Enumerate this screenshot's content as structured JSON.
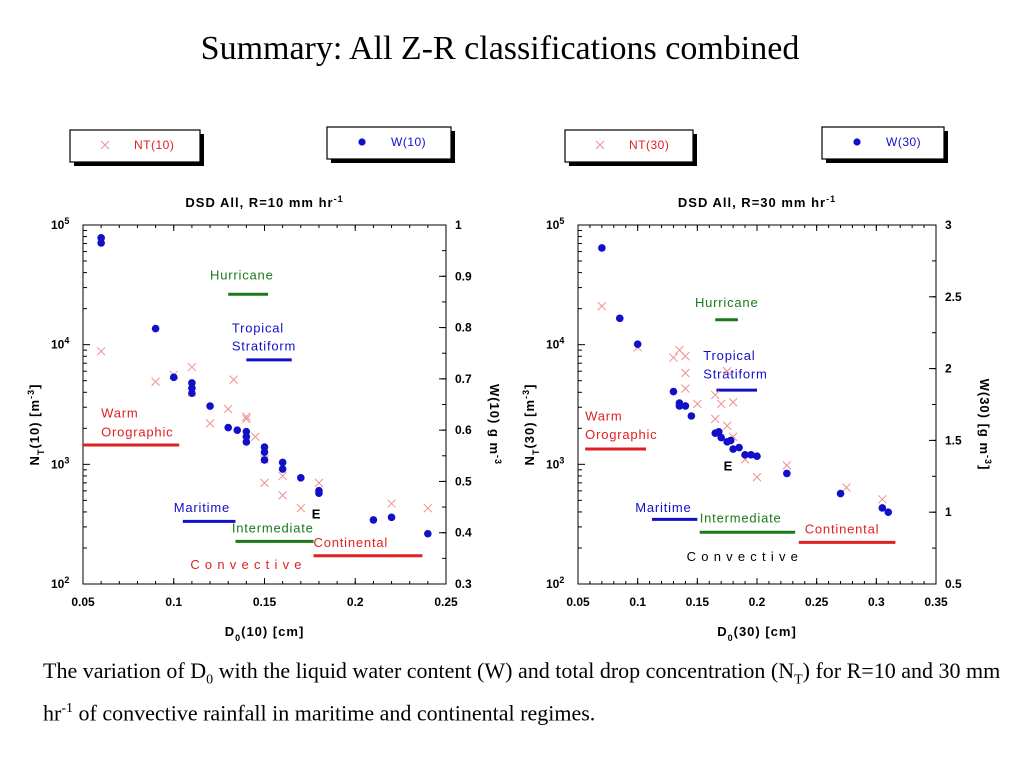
{
  "title": "Summary:  All Z-R classifications combined",
  "caption": {
    "part1": "The variation of D",
    "sub1": "0",
    "part2": " with the liquid water content (W) and total drop concentration (N",
    "sub2": "T",
    "part3": ") for R=10 and 30 mm hr",
    "sup1": "-1",
    "part4": " of convective rainfall in maritime and continental regimes."
  },
  "chart_data": [
    {
      "type": "scatter",
      "title": "DSD  All, R=10 mm hr",
      "title_sup": "-1",
      "xlabel": "D",
      "xlabel_sub": "0",
      "xlabel_rest": "(10) [cm]",
      "ylabel_left": "N",
      "ylabel_left_sub": "T",
      "ylabel_left_rest": "(10)  [m",
      "ylabel_left_sup": "-3",
      "ylabel_left_end": "]",
      "ylabel_right": "W(10) g m",
      "ylabel_right_sup": "-3",
      "xlim": [
        0.05,
        0.25
      ],
      "xticks": [
        0.05,
        0.1,
        0.15,
        0.2,
        0.25
      ],
      "xtick_labels": [
        "0.05",
        "0.1",
        "0.15",
        "0.2",
        "0.25"
      ],
      "ylim_left": [
        100,
        100000
      ],
      "yscale_left": "log",
      "yticks_left": [
        {
          "value": 100,
          "base": "10",
          "exp": "2"
        },
        {
          "value": 1000,
          "base": "10",
          "exp": "3"
        },
        {
          "value": 10000,
          "base": "10",
          "exp": "4"
        },
        {
          "value": 100000,
          "base": "10",
          "exp": "5"
        }
      ],
      "ylim_right": [
        0.3,
        1.0
      ],
      "yticks_right": [
        0.3,
        0.4,
        0.5,
        0.6,
        0.7,
        0.8,
        0.9,
        1.0
      ],
      "ytick_labels_right": [
        "0.3",
        "0.4",
        "0.5",
        "0.6",
        "0.7",
        "0.8",
        "0.9",
        "1"
      ],
      "legends": [
        {
          "label": "NT(10)",
          "marker": "x",
          "color": "#e02020"
        },
        {
          "label": "W(10)",
          "marker": "dot",
          "color": "#1010c8"
        }
      ],
      "series": [
        {
          "name": "NT(10)",
          "axis": "left",
          "marker": "x",
          "color": "#f09090",
          "points": [
            [
              0.06,
              8800
            ],
            [
              0.09,
              4900
            ],
            [
              0.1,
              5600
            ],
            [
              0.11,
              6500
            ],
            [
              0.11,
              4000
            ],
            [
              0.12,
              2200
            ],
            [
              0.13,
              2900
            ],
            [
              0.133,
              5100
            ],
            [
              0.14,
              2400
            ],
            [
              0.14,
              2500
            ],
            [
              0.145,
              1700
            ],
            [
              0.15,
              1100
            ],
            [
              0.15,
              700
            ],
            [
              0.16,
              800
            ],
            [
              0.16,
              550
            ],
            [
              0.17,
              430
            ],
            [
              0.18,
              700
            ],
            [
              0.22,
              470
            ],
            [
              0.24,
              430
            ]
          ]
        },
        {
          "name": "W(10)",
          "axis": "right",
          "marker": "dot",
          "color": "#1010c8",
          "points": [
            [
              0.06,
              0.975
            ],
            [
              0.06,
              0.965
            ],
            [
              0.09,
              0.798
            ],
            [
              0.1,
              0.703
            ],
            [
              0.11,
              0.692
            ],
            [
              0.11,
              0.682
            ],
            [
              0.11,
              0.672
            ],
            [
              0.12,
              0.647
            ],
            [
              0.13,
              0.605
            ],
            [
              0.135,
              0.6
            ],
            [
              0.14,
              0.597
            ],
            [
              0.14,
              0.587
            ],
            [
              0.14,
              0.577
            ],
            [
              0.15,
              0.567
            ],
            [
              0.15,
              0.557
            ],
            [
              0.15,
              0.542
            ],
            [
              0.16,
              0.537
            ],
            [
              0.16,
              0.524
            ],
            [
              0.17,
              0.507
            ],
            [
              0.18,
              0.482
            ],
            [
              0.18,
              0.477
            ],
            [
              0.21,
              0.425
            ],
            [
              0.22,
              0.43
            ],
            [
              0.24,
              0.398
            ]
          ]
        }
      ],
      "annotations": [
        {
          "text": "Hurricane",
          "color": "#1a7a1a",
          "lx": 0.12,
          "ly": 0.894,
          "x1": 0.13,
          "x2": 0.152,
          "y": 0.865
        },
        {
          "text": "Tropical",
          "color": "#1010c8",
          "lx": 0.132,
          "ly": 0.79,
          "x1": null,
          "x2": null,
          "y": null
        },
        {
          "text": "Stratiform",
          "color": "#1010c8",
          "lx": 0.132,
          "ly": 0.755,
          "x1": 0.14,
          "x2": 0.165,
          "y": 0.737
        },
        {
          "text": "Warm",
          "color": "#e02020",
          "lx": 0.06,
          "ly": 0.625,
          "x1": null,
          "x2": null,
          "y": null
        },
        {
          "text": "Orographic",
          "color": "#e02020",
          "lx": 0.06,
          "ly": 0.588,
          "x1": 0.05,
          "x2": 0.103,
          "y": 0.571
        },
        {
          "text": "Maritime",
          "color": "#1010c8",
          "lx": 0.1,
          "ly": 0.44,
          "x1": 0.105,
          "x2": 0.134,
          "y": 0.422
        },
        {
          "text": "Intermediate",
          "color": "#1a7a1a",
          "lx": 0.132,
          "ly": 0.4,
          "x1": 0.134,
          "x2": 0.177,
          "y": 0.383
        },
        {
          "text": "Continental",
          "color": "#e02020",
          "lx": 0.177,
          "ly": 0.372,
          "x1": 0.177,
          "x2": 0.237,
          "y": 0.355
        },
        {
          "text": "C o n v e c t i v e",
          "color": "#e02020",
          "lx": 0.14,
          "ly": 0.329,
          "x1": null,
          "x2": null,
          "y": null,
          "anchor": "middle"
        },
        {
          "text": "E",
          "color": "#000000",
          "lx": 0.176,
          "ly": 0.428,
          "x1": null,
          "x2": null,
          "y": null,
          "bold": true
        }
      ]
    },
    {
      "type": "scatter",
      "title": "DSD  All, R=30 mm hr",
      "title_sup": "-1",
      "xlabel": "D",
      "xlabel_sub": "0",
      "xlabel_rest": "(30) [cm]",
      "ylabel_left": "N",
      "ylabel_left_sub": "T",
      "ylabel_left_rest": "(30) [m",
      "ylabel_left_sup": "-3",
      "ylabel_left_end": "]",
      "ylabel_right": "W(30) [g m",
      "ylabel_right_sup": "-3",
      "ylabel_right_end": "]",
      "xlim": [
        0.05,
        0.35
      ],
      "xticks": [
        0.05,
        0.1,
        0.15,
        0.2,
        0.25,
        0.3,
        0.35
      ],
      "xtick_labels": [
        "0.05",
        "0.1",
        "0.15",
        "0.2",
        "0.25",
        "0.3",
        "0.35"
      ],
      "ylim_left": [
        100,
        100000
      ],
      "yscale_left": "log",
      "yticks_left": [
        {
          "value": 100,
          "base": "10",
          "exp": "2"
        },
        {
          "value": 1000,
          "base": "10",
          "exp": "3"
        },
        {
          "value": 10000,
          "base": "10",
          "exp": "4"
        },
        {
          "value": 100000,
          "base": "10",
          "exp": "5"
        }
      ],
      "ylim_right": [
        0.5,
        3.0
      ],
      "yticks_right": [
        0.5,
        1.0,
        1.5,
        2.0,
        2.5,
        3.0
      ],
      "ytick_labels_right": [
        "0.5",
        "1",
        "1.5",
        "2",
        "2.5",
        "3"
      ],
      "legends": [
        {
          "label": "NT(30)",
          "marker": "x",
          "color": "#e02020"
        },
        {
          "label": "W(30)",
          "marker": "dot",
          "color": "#1010c8"
        }
      ],
      "series": [
        {
          "name": "NT(30)",
          "axis": "left",
          "marker": "x",
          "color": "#f09090",
          "points": [
            [
              0.07,
              21000
            ],
            [
              0.1,
              9500
            ],
            [
              0.13,
              7800
            ],
            [
              0.135,
              9000
            ],
            [
              0.14,
              8000
            ],
            [
              0.14,
              5800
            ],
            [
              0.14,
              4300
            ],
            [
              0.15,
              3200
            ],
            [
              0.165,
              3800
            ],
            [
              0.17,
              3200
            ],
            [
              0.175,
              6000
            ],
            [
              0.18,
              3300
            ],
            [
              0.165,
              2400
            ],
            [
              0.175,
              2100
            ],
            [
              0.18,
              1700
            ],
            [
              0.19,
              1100
            ],
            [
              0.2,
              780
            ],
            [
              0.225,
              980
            ],
            [
              0.275,
              640
            ],
            [
              0.305,
              510
            ]
          ]
        },
        {
          "name": "W(30)",
          "axis": "right",
          "marker": "dot",
          "color": "#1010c8",
          "points": [
            [
              0.07,
              2.84
            ],
            [
              0.085,
              2.35
            ],
            [
              0.1,
              2.17
            ],
            [
              0.13,
              1.84
            ],
            [
              0.135,
              1.76
            ],
            [
              0.135,
              1.74
            ],
            [
              0.14,
              1.74
            ],
            [
              0.145,
              1.67
            ],
            [
              0.165,
              1.55
            ],
            [
              0.168,
              1.56
            ],
            [
              0.17,
              1.52
            ],
            [
              0.175,
              1.49
            ],
            [
              0.178,
              1.5
            ],
            [
              0.18,
              1.44
            ],
            [
              0.185,
              1.45
            ],
            [
              0.19,
              1.4
            ],
            [
              0.2,
              1.39
            ],
            [
              0.195,
              1.4
            ],
            [
              0.225,
              1.27
            ],
            [
              0.27,
              1.13
            ],
            [
              0.305,
              1.03
            ],
            [
              0.31,
              1.0
            ]
          ]
        }
      ],
      "annotations": [
        {
          "text": "Hurricane",
          "color": "#1a7a1a",
          "lx": 0.148,
          "ly": 2.43,
          "x1": 0.165,
          "x2": 0.184,
          "y": 2.34
        },
        {
          "text": "Tropical",
          "color": "#1010c8",
          "lx": 0.155,
          "ly": 2.06,
          "x1": null,
          "x2": null,
          "y": null
        },
        {
          "text": "Stratiform",
          "color": "#1010c8",
          "lx": 0.155,
          "ly": 1.93,
          "x1": 0.166,
          "x2": 0.2,
          "y": 1.85
        },
        {
          "text": "Warm",
          "color": "#e02020",
          "lx": 0.056,
          "ly": 1.64,
          "x1": null,
          "x2": null,
          "y": null
        },
        {
          "text": "Orographic",
          "color": "#e02020",
          "lx": 0.056,
          "ly": 1.51,
          "x1": 0.056,
          "x2": 0.107,
          "y": 1.44
        },
        {
          "text": "Maritime",
          "color": "#1010c8",
          "lx": 0.098,
          "ly": 1.0,
          "x1": 0.112,
          "x2": 0.15,
          "y": 0.95
        },
        {
          "text": "Intermediate",
          "color": "#1a7a1a",
          "lx": 0.152,
          "ly": 0.93,
          "x1": 0.152,
          "x2": 0.232,
          "y": 0.86
        },
        {
          "text": "Continental",
          "color": "#e02020",
          "lx": 0.24,
          "ly": 0.85,
          "x1": 0.235,
          "x2": 0.316,
          "y": 0.79
        },
        {
          "text": "C o n v e c t i v e",
          "color": "#000000",
          "lx": 0.188,
          "ly": 0.66,
          "x1": null,
          "x2": null,
          "y": null,
          "anchor": "middle"
        },
        {
          "text": "E",
          "color": "#000000",
          "lx": 0.172,
          "ly": 1.29,
          "x1": null,
          "x2": null,
          "y": null,
          "bold": true
        }
      ]
    }
  ]
}
